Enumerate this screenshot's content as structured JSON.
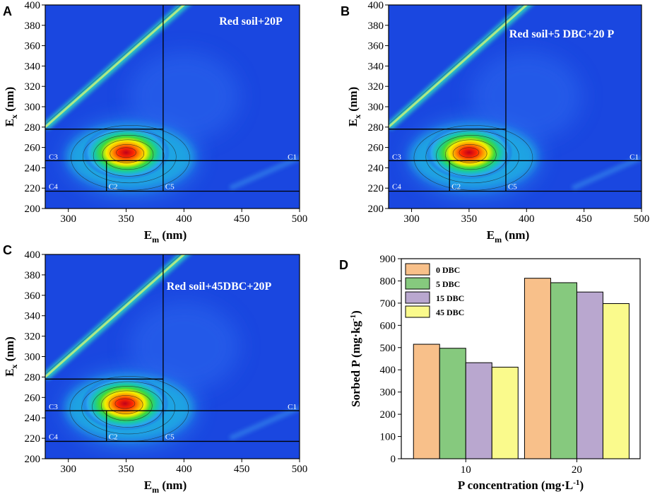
{
  "colors": {
    "bg": "#1a47e0",
    "bar_0": "#f8c08a",
    "bar_5": "#86c97e",
    "bar_15": "#b9a7cf",
    "bar_45": "#fafa8c",
    "line": "#000000"
  },
  "eem_axes": {
    "xlabel_main": "E",
    "xlabel_sub": "m",
    "xlabel_unit": " (nm)",
    "ylabel_main": "E",
    "ylabel_sub": "x",
    "ylabel_unit": " (nm)",
    "xlim": [
      280,
      500
    ],
    "ylim": [
      200,
      400
    ],
    "x_ticks": [
      "300",
      "350",
      "400",
      "450",
      "500"
    ],
    "y_ticks": [
      "200",
      "220",
      "240",
      "260",
      "280",
      "300",
      "320",
      "340",
      "360",
      "380",
      "400"
    ]
  },
  "eem_panels": [
    {
      "letter": "A",
      "title": "Red soil+20P"
    },
    {
      "letter": "B",
      "title": "Red soil+5 DBC+20 P"
    },
    {
      "letter": "C",
      "title": "Red soil+45DBC+20P"
    }
  ],
  "regions": [
    "C1",
    "C2",
    "C3",
    "C4",
    "C5"
  ],
  "chart_data": [
    {
      "type": "heatmap",
      "panel": "A",
      "title": "Red soil+20P",
      "xlabel": "Em (nm)",
      "ylabel": "Ex (nm)",
      "xlim": [
        280,
        500
      ],
      "ylim": [
        200,
        400
      ],
      "peak": {
        "em": 350,
        "ex": 255
      },
      "region_lines": {
        "ex": [
          217,
          247,
          278
        ],
        "em": [
          333,
          382
        ]
      }
    },
    {
      "type": "heatmap",
      "panel": "B",
      "title": "Red soil+5 DBC+20 P",
      "xlabel": "Em (nm)",
      "ylabel": "Ex (nm)",
      "xlim": [
        280,
        500
      ],
      "ylim": [
        200,
        400
      ],
      "peak": {
        "em": 350,
        "ex": 255
      },
      "region_lines": {
        "ex": [
          217,
          247,
          278
        ],
        "em": [
          333,
          382
        ]
      }
    },
    {
      "type": "heatmap",
      "panel": "C",
      "title": "Red soil+45DBC+20P",
      "xlabel": "Em (nm)",
      "ylabel": "Ex (nm)",
      "xlim": [
        280,
        500
      ],
      "ylim": [
        200,
        400
      ],
      "peak": {
        "em": 349,
        "ex": 254
      },
      "region_lines": {
        "ex": [
          217,
          247,
          278
        ],
        "em": [
          333,
          382
        ]
      }
    },
    {
      "type": "bar",
      "panel": "D",
      "categories": [
        "10",
        "20"
      ],
      "series": [
        {
          "name": "0  DBC",
          "values": [
            515,
            812
          ]
        },
        {
          "name": "5  DBC",
          "values": [
            497,
            792
          ]
        },
        {
          "name": "15 DBC",
          "values": [
            432,
            750
          ]
        },
        {
          "name": "45 DBC",
          "values": [
            412,
            698
          ]
        }
      ],
      "xlabel_pre": "P concentration (mg·L",
      "xlabel_sup": "-1",
      "xlabel_post": ")",
      "ylabel_pre": "Sorbed P  (mg·kg",
      "ylabel_sup": "-1",
      "ylabel_post": ")",
      "ylim": [
        0,
        900
      ],
      "y_ticks": [
        "0",
        "100",
        "200",
        "300",
        "400",
        "500",
        "600",
        "700",
        "800",
        "900"
      ]
    }
  ]
}
